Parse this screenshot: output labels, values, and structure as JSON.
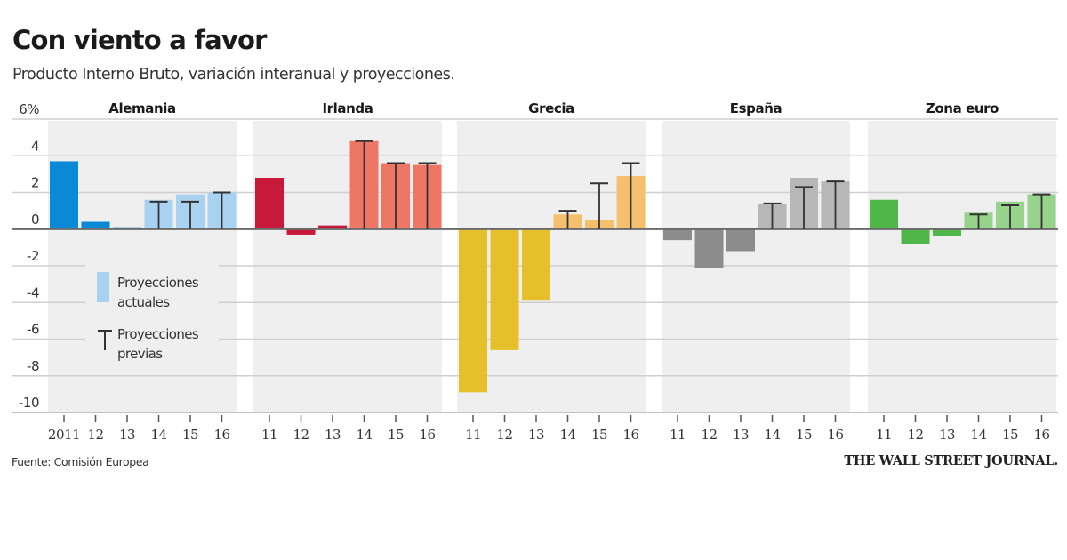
{
  "header": {
    "title": "Con viento a favor",
    "subtitle": "Producto Interno Bruto, variación interanual y proyecciones."
  },
  "footer": {
    "source": "Fuente: Comisión Europea",
    "credit": "THE WALL STREET JOURNAL."
  },
  "chart_data": {
    "type": "bar",
    "title": "Con viento a favor",
    "subtitle": "Producto Interno Bruto, variación interanual y proyecciones.",
    "ylabel": "%",
    "ylim": [
      -10,
      6
    ],
    "yticks": [
      6,
      4,
      2,
      0,
      -2,
      -4,
      -6,
      -8,
      -10
    ],
    "ytick_labels": [
      "6%",
      "4",
      "2",
      "0",
      "-2",
      "-4",
      "-6",
      "-8",
      "-10"
    ],
    "grid": true,
    "categories": [
      "2011",
      "12",
      "13",
      "14",
      "15",
      "16"
    ],
    "category_labels_other_panels": [
      "11",
      "12",
      "13",
      "14",
      "15",
      "16"
    ],
    "legend": {
      "placement": "inside-left",
      "items": [
        {
          "label_line1": "Proyecciones",
          "label_line2": "actuales",
          "marker": "bar",
          "color": "#a9d1f0"
        },
        {
          "label_line1": "Proyecciones",
          "label_line2": "previas",
          "marker": "T-whisker",
          "color": "#333333"
        }
      ]
    },
    "projection_start_index": 3,
    "series": [
      {
        "name": "Alemania",
        "actual_color": "#0a8ad6",
        "projection_color": "#a9d1f0",
        "values": [
          3.7,
          0.4,
          0.1,
          1.6,
          1.9,
          2.0
        ],
        "previous_projections": [
          null,
          null,
          null,
          1.5,
          1.5,
          2.0
        ]
      },
      {
        "name": "Irlanda",
        "actual_color": "#c8193a",
        "projection_color": "#ee7665",
        "values": [
          2.8,
          -0.3,
          0.2,
          4.8,
          3.6,
          3.5
        ],
        "previous_projections": [
          null,
          null,
          null,
          4.8,
          3.6,
          3.6
        ]
      },
      {
        "name": "Grecia",
        "actual_color": "#e6c02a",
        "projection_color": "#f5c06d",
        "values": [
          -8.9,
          -6.6,
          -3.9,
          0.8,
          0.5,
          2.9
        ],
        "previous_projections": [
          null,
          null,
          null,
          1.0,
          2.5,
          3.6
        ]
      },
      {
        "name": "España",
        "actual_color": "#8c8c8c",
        "projection_color": "#b7b7b7",
        "values": [
          -0.6,
          -2.1,
          -1.2,
          1.4,
          2.8,
          2.6
        ],
        "previous_projections": [
          null,
          null,
          null,
          1.4,
          2.3,
          2.6
        ]
      },
      {
        "name": "Zona euro",
        "actual_color": "#4fb64a",
        "projection_color": "#97d38a",
        "values": [
          1.6,
          -0.8,
          -0.4,
          0.9,
          1.5,
          1.9
        ],
        "previous_projections": [
          null,
          null,
          null,
          0.8,
          1.3,
          1.9
        ]
      }
    ]
  }
}
